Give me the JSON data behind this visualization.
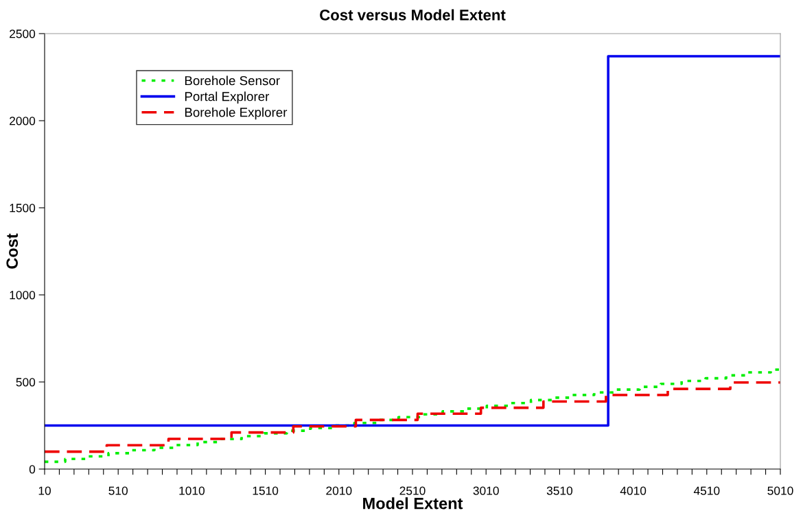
{
  "chart_data": {
    "type": "step",
    "title": "Cost versus Model Extent",
    "xlabel": "Model Extent",
    "ylabel": "Cost",
    "xlim": [
      10,
      5010
    ],
    "ylim": [
      0,
      2500
    ],
    "xticks": [
      10,
      {
        "value": 110,
        "label": null
      },
      {
        "value": 210,
        "label": null
      },
      {
        "value": 310,
        "label": null
      },
      {
        "value": 410,
        "label": null
      },
      510,
      {
        "value": 610,
        "label": null
      },
      {
        "value": 710,
        "label": null
      },
      {
        "value": 810,
        "label": null
      },
      {
        "value": 910,
        "label": null
      },
      1010,
      {
        "value": 1110,
        "label": null
      },
      {
        "value": 1210,
        "label": null
      },
      {
        "value": 1310,
        "label": null
      },
      {
        "value": 1410,
        "label": null
      },
      1510,
      {
        "value": 1610,
        "label": null
      },
      {
        "value": 1710,
        "label": null
      },
      {
        "value": 1810,
        "label": null
      },
      {
        "value": 1910,
        "label": null
      },
      2010,
      {
        "value": 2110,
        "label": null
      },
      {
        "value": 2210,
        "label": null
      },
      {
        "value": 2310,
        "label": null
      },
      {
        "value": 2410,
        "label": null
      },
      2510,
      {
        "value": 2610,
        "label": null
      },
      {
        "value": 2710,
        "label": null
      },
      {
        "value": 2810,
        "label": null
      },
      {
        "value": 2910,
        "label": null
      },
      3010,
      {
        "value": 3110,
        "label": null
      },
      {
        "value": 3210,
        "label": null
      },
      {
        "value": 3310,
        "label": null
      },
      {
        "value": 3410,
        "label": null
      },
      3510,
      {
        "value": 3610,
        "label": null
      },
      {
        "value": 3710,
        "label": null
      },
      {
        "value": 3810,
        "label": null
      },
      {
        "value": 3910,
        "label": null
      },
      4010,
      {
        "value": 4110,
        "label": null
      },
      {
        "value": 4210,
        "label": null
      },
      {
        "value": 4310,
        "label": null
      },
      {
        "value": 4410,
        "label": null
      },
      4510,
      {
        "value": 4610,
        "label": null
      },
      {
        "value": 4710,
        "label": null
      },
      {
        "value": 4810,
        "label": null
      },
      {
        "value": 4910,
        "label": null
      },
      5010
    ],
    "yticks": [
      0,
      500,
      1000,
      1500,
      2000,
      2500
    ],
    "grid": false,
    "legend": "top left",
    "series": [
      {
        "name": "Borehole Sensor",
        "color": "#00ee00",
        "line_style": "dotted",
        "x": [
          10,
          150,
          304,
          444,
          602,
          756,
          896,
          1050,
          1209,
          1349,
          1503,
          1656,
          1815,
          1965,
          2115,
          2265,
          2415,
          2565,
          2715,
          2865,
          3015,
          3165,
          3315,
          3465,
          3592,
          3745,
          3895,
          4053,
          4198,
          4339,
          4502,
          4642,
          4791,
          4945,
          5010
        ],
        "values": [
          42,
          58,
          73,
          91,
          108,
          122,
          138,
          155,
          172,
          189,
          205,
          220,
          235,
          250,
          265,
          282,
          298,
          314,
          331,
          347,
          363,
          379,
          396,
          410,
          425,
          440,
          456,
          472,
          489,
          506,
          521,
          538,
          555,
          571,
          571
        ]
      },
      {
        "name": "Portal Explorer",
        "color": "#0000ee",
        "line_style": "solid",
        "x": [
          10,
          3840,
          5010
        ],
        "values": [
          250,
          2370,
          2370
        ]
      },
      {
        "name": "Borehole Explorer",
        "color": "#ee0000",
        "line_style": "dashed",
        "x": [
          10,
          432,
          852,
          1280,
          1700,
          2125,
          2545,
          2975,
          3400,
          3825,
          4245,
          4670,
          5010
        ],
        "values": [
          100,
          137,
          173,
          210,
          245,
          282,
          318,
          352,
          388,
          425,
          460,
          497,
          497
        ]
      }
    ]
  }
}
